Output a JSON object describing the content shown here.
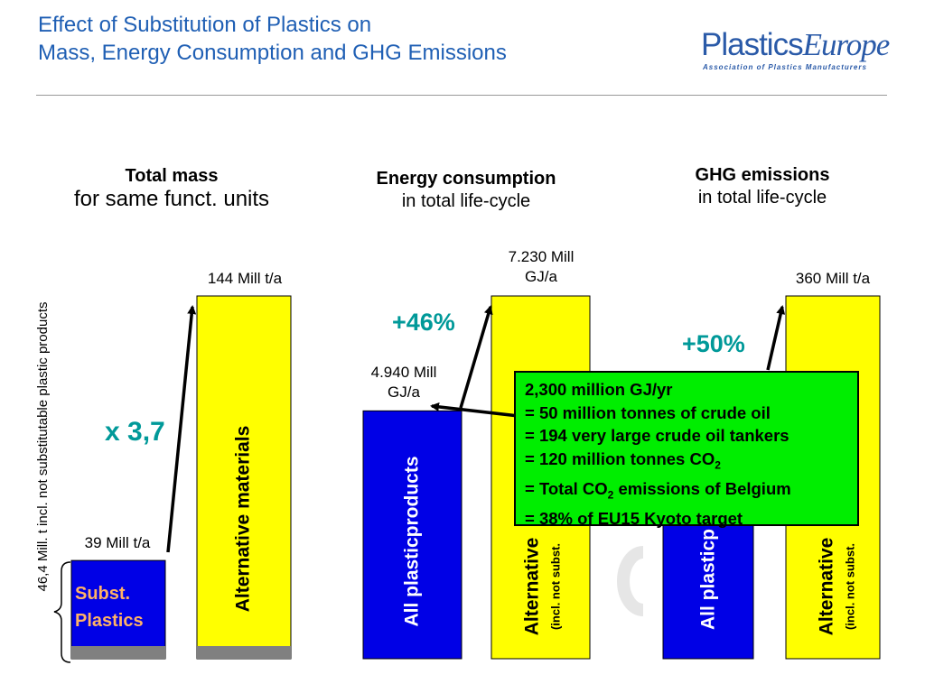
{
  "title": {
    "line1": "Effect of Substitution of Plastics on",
    "line2": "Mass, Energy Consumption and GHG Emissions"
  },
  "logo": {
    "main_a": "Plastics",
    "main_b": "Europe",
    "tagline": "Association of Plastics Manufacturers"
  },
  "headers": {
    "mass": {
      "bold": "Total mass",
      "sub": "for same funct. units"
    },
    "energy": {
      "bold": "Energy consumption",
      "sub": "in total life-cycle"
    },
    "ghg": {
      "bold": "GHG emissions",
      "sub": "in total life-cycle"
    }
  },
  "side_note": "46,4 Mill. t incl. not substitutable plastic products",
  "colors": {
    "plastics": "#0000e6",
    "alternative": "#ffff00",
    "callout": "#00ee00",
    "accent": "#009999",
    "non_subst": "#808080",
    "title": "#1f5fb4"
  },
  "chart_data": [
    {
      "type": "bar",
      "title": "Total mass for same funct. units",
      "categories": [
        "Subst. Plastics",
        "Alternative materials"
      ],
      "values": [
        39,
        144
      ],
      "unit": "Mill t/a",
      "value_labels": [
        "39 Mill t/a",
        "144 Mill t/a"
      ],
      "bar_labels": [
        "Subst. Plastics",
        "Alternative materials"
      ],
      "change_label": "x 3,7"
    },
    {
      "type": "bar",
      "title": "Energy consumption in total life-cycle",
      "categories": [
        "All plasticproducts",
        "Alternative"
      ],
      "values": [
        4940,
        7230
      ],
      "unit": "Mill GJ/a",
      "value_labels": [
        [
          "4.940 Mill",
          "GJ/a"
        ],
        [
          "7.230 Mill",
          "GJ/a"
        ]
      ],
      "bar_labels": [
        "All plasticproducts",
        "Alternative"
      ],
      "bar_sublabel": "(incl. not subst.",
      "change_label": "+46%"
    },
    {
      "type": "bar",
      "title": "GHG emissions in total life-cycle",
      "categories": [
        "All plasticp",
        "Alternative"
      ],
      "values": [
        240,
        360
      ],
      "unit": "Mill t/a",
      "value_labels": [
        "",
        "360 Mill t/a"
      ],
      "bar_labels": [
        "All plasticp",
        "Alternative"
      ],
      "bar_sublabel": "(incl. not subst.",
      "change_label": "+50%"
    }
  ],
  "callout": {
    "lines": [
      "2,300 million GJ/yr",
      "= 50 million tonnes of crude oil",
      "= 194 very large crude oil tankers",
      "= 120 million tonnes CO",
      "= Total CO",
      "emissions of Belgium",
      "= 38% of EU15 Kyoto target"
    ],
    "subscript": "2"
  }
}
